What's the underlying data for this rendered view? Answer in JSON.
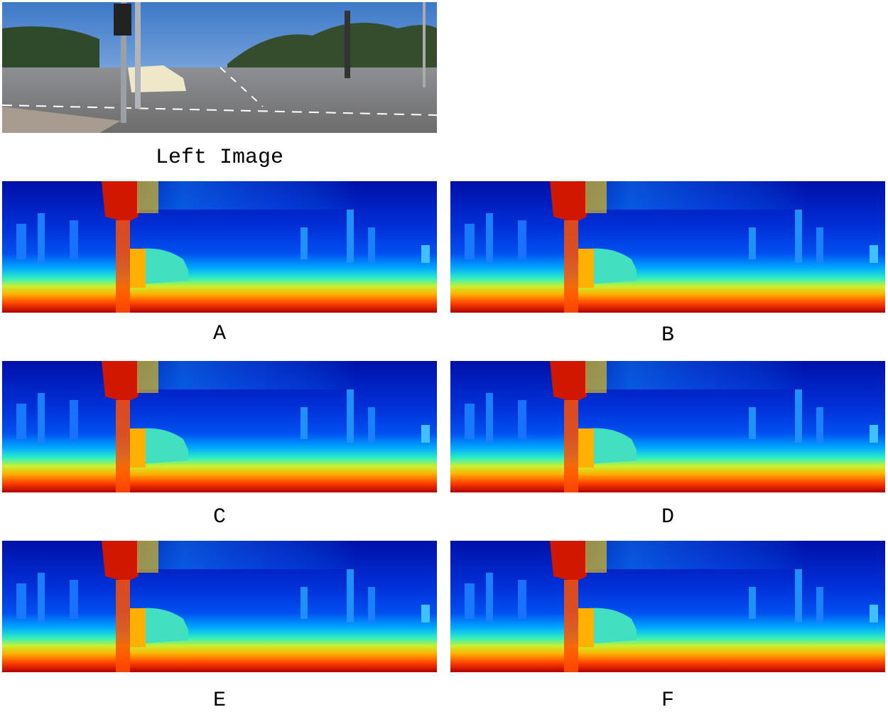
{
  "panels": [
    {
      "label": "Left Image"
    },
    {
      "label": "A"
    },
    {
      "label": "B"
    },
    {
      "label": "C"
    },
    {
      "label": "D"
    },
    {
      "label": "E"
    },
    {
      "label": "F"
    }
  ]
}
